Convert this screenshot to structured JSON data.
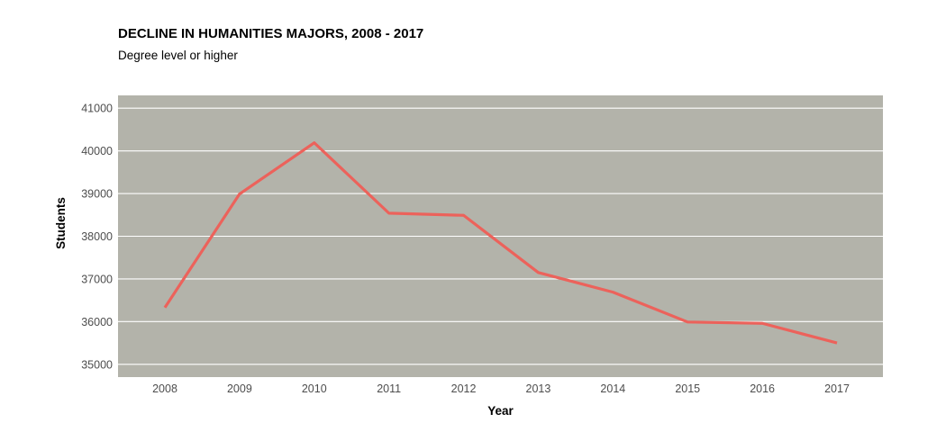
{
  "colors": {
    "panel": "#b3b3aa",
    "grid": "#ffffff",
    "line": "#ec625b"
  },
  "chart_data": {
    "type": "line",
    "title": "DECLINE IN HUMANITIES MAJORS, 2008 - 2017",
    "subtitle": "Degree level or higher",
    "xlabel": "Year",
    "ylabel": "Students",
    "x": [
      2008,
      2009,
      2010,
      2011,
      2012,
      2013,
      2014,
      2015,
      2016,
      2017
    ],
    "x_tick_labels": [
      "2008",
      "2009",
      "2010",
      "2011",
      "2012",
      "2013",
      "2014",
      "2015",
      "2016",
      "2017"
    ],
    "y_tick_labels": [
      "35000",
      "36000",
      "37000",
      "38000",
      "39000",
      "40000",
      "41000"
    ],
    "y_ticks": [
      35000,
      36000,
      37000,
      38000,
      39000,
      40000,
      41000
    ],
    "ylim": [
      34700,
      41300
    ],
    "grid": true,
    "series": [
      {
        "values": [
          36330,
          38990,
          40190,
          38540,
          38490,
          37150,
          36690,
          35990,
          35960,
          35500
        ]
      }
    ]
  }
}
